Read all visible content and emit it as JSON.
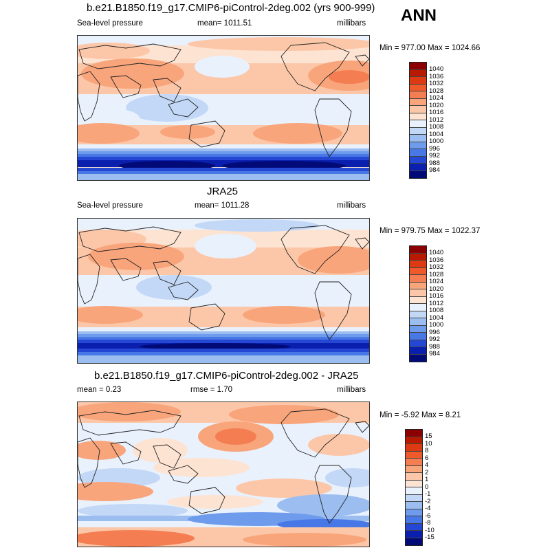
{
  "corner_label": "ANN",
  "panels": [
    {
      "title": "b.e21.B1850.f19_g17.CMIP6-piControl-2deg.002 (yrs 900-999)",
      "left": "Sea-level pressure",
      "center": "mean= 1011.51",
      "right": "millibars",
      "minmax": "Min = 977.00 Max = 1024.66",
      "colorbar": [
        "1040",
        "1036",
        "1032",
        "1028",
        "1024",
        "1020",
        "1016",
        "1012",
        "1008",
        "1004",
        "1000",
        "996",
        "992",
        "988",
        "984"
      ]
    },
    {
      "title": "JRA25",
      "left": "Sea-level pressure",
      "center": "mean= 1011.28",
      "right": "millibars",
      "minmax": "Min = 979.75 Max = 1022.37",
      "colorbar": [
        "1040",
        "1036",
        "1032",
        "1028",
        "1024",
        "1020",
        "1016",
        "1012",
        "1008",
        "1004",
        "1000",
        "996",
        "992",
        "988",
        "984"
      ]
    },
    {
      "title": "b.e21.B1850.f19_g17.CMIP6-piControl-2deg.002 - JRA25",
      "left": "mean =  0.23",
      "center": "rmse =  1.70",
      "right": "millibars",
      "minmax": "Min =  -5.92 Max =   8.21",
      "colorbar": [
        "15",
        "10",
        "8",
        "6",
        "4",
        "2",
        "1",
        "0",
        "-1",
        "-2",
        "-4",
        "-6",
        "-8",
        "-10",
        "-15"
      ]
    }
  ],
  "colors": {
    "levels": [
      "#8b0000",
      "#b81a00",
      "#dc3a12",
      "#ee5a2c",
      "#f47e52",
      "#f9a57c",
      "#fcc7a8",
      "#fde3d1",
      "#e9f1fc",
      "#c2d8f6",
      "#9bbdf0",
      "#6f9bec",
      "#4877e6",
      "#2448d4",
      "#0a1fad",
      "#020a78"
    ]
  }
}
